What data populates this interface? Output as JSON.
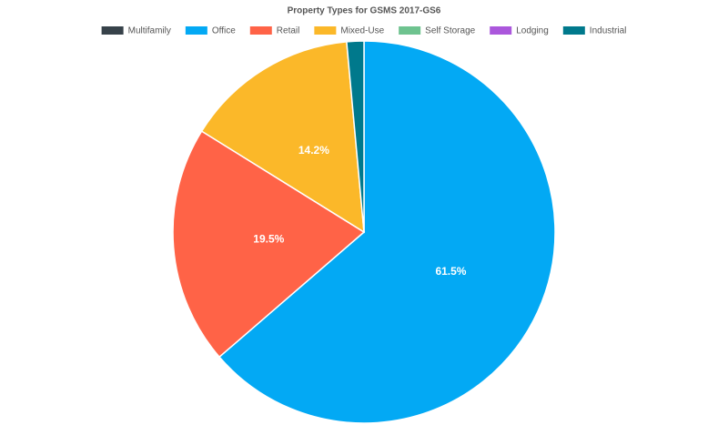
{
  "chart_data": {
    "type": "pie",
    "title": "Property Types for GSMS 2017-GS6",
    "categories": [
      "Multifamily",
      "Office",
      "Retail",
      "Mixed-Use",
      "Self Storage",
      "Lodging",
      "Industrial"
    ],
    "values": [
      0,
      61.5,
      19.5,
      14.2,
      0,
      0,
      1.4
    ],
    "value_labels": [
      null,
      "61.5%",
      "19.5%",
      "14.2%",
      null,
      null,
      null
    ],
    "colors": [
      "#37424a",
      "#03a9f4",
      "#ff6347",
      "#fbb829",
      "#6ec38f",
      "#ab57dc",
      "#00798c"
    ],
    "legend": "top"
  }
}
